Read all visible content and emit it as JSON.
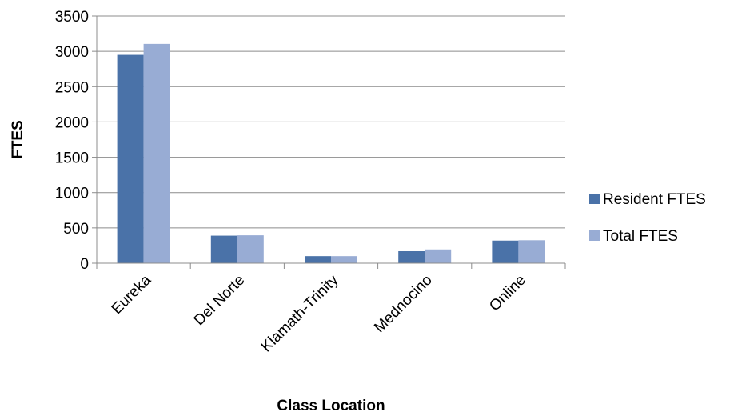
{
  "chart_data": {
    "type": "bar",
    "title": "",
    "xlabel": "Class Location",
    "ylabel": "FTES",
    "categories": [
      "Eureka",
      "Del Norte",
      "Klamath-Trinity",
      "Mednocino",
      "Online"
    ],
    "series": [
      {
        "name": "Resident FTES",
        "color": "#4a72a8",
        "values": [
          2950,
          390,
          100,
          170,
          320
        ]
      },
      {
        "name": "Total FTES",
        "color": "#98acd4",
        "values": [
          3105,
          395,
          100,
          195,
          325
        ]
      }
    ],
    "ylim": [
      0,
      3500
    ],
    "yticks": [
      "0",
      "500",
      "1000",
      "1500",
      "2000",
      "2500",
      "3000",
      "3500"
    ],
    "grid": true,
    "legend_position": "right"
  }
}
